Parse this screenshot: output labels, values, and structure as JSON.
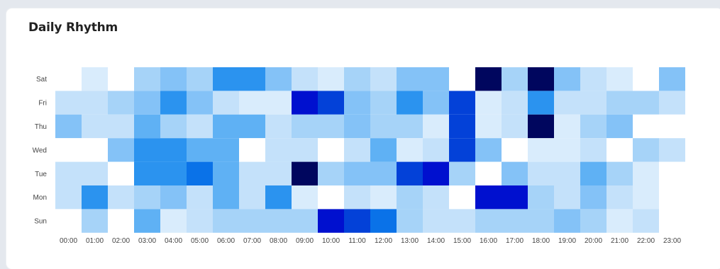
{
  "card": {
    "title": "Daily Rhythm"
  },
  "chart_data": {
    "type": "heatmap",
    "title": "Daily Rhythm",
    "x_labels": [
      "00:00",
      "01:00",
      "02:00",
      "03:00",
      "04:00",
      "05:00",
      "06:00",
      "07:00",
      "08:00",
      "09:00",
      "10:00",
      "11:00",
      "12:00",
      "13:00",
      "14:00",
      "15:00",
      "16:00",
      "17:00",
      "18:00",
      "19:00",
      "20:00",
      "21:00",
      "22:00",
      "23:00"
    ],
    "y_labels": [
      "Sat",
      "Fri",
      "Thu",
      "Wed",
      "Tue",
      "Mon",
      "Sun"
    ],
    "values": [
      [
        0,
        1,
        0,
        3,
        4,
        3,
        6,
        6,
        4,
        2,
        1,
        3,
        2,
        4,
        4,
        0,
        10,
        3,
        10,
        4,
        2,
        1,
        0,
        4
      ],
      [
        2,
        2,
        3,
        4,
        6,
        4,
        2,
        1,
        1,
        9,
        8,
        4,
        3,
        6,
        4,
        8,
        1,
        2,
        6,
        2,
        2,
        3,
        3,
        2
      ],
      [
        4,
        2,
        2,
        5,
        3,
        2,
        5,
        5,
        2,
        3,
        3,
        4,
        3,
        3,
        1,
        8,
        1,
        2,
        10,
        1,
        3,
        4,
        0,
        0
      ],
      [
        0,
        0,
        4,
        6,
        6,
        5,
        5,
        0,
        2,
        2,
        0,
        2,
        5,
        1,
        2,
        8,
        4,
        0,
        1,
        1,
        2,
        0,
        3,
        2
      ],
      [
        2,
        2,
        0,
        6,
        6,
        7,
        5,
        2,
        2,
        10,
        3,
        4,
        4,
        8,
        9,
        3,
        0,
        4,
        2,
        2,
        5,
        3,
        1,
        0
      ],
      [
        2,
        6,
        2,
        3,
        4,
        2,
        5,
        2,
        6,
        1,
        0,
        2,
        1,
        3,
        2,
        0,
        9,
        9,
        3,
        2,
        4,
        2,
        1,
        0
      ],
      [
        0,
        3,
        0,
        5,
        1,
        2,
        3,
        3,
        3,
        3,
        9,
        8,
        7,
        3,
        2,
        2,
        3,
        3,
        3,
        4,
        3,
        1,
        2,
        0
      ]
    ],
    "color_scale": [
      "#ffffff",
      "#d9ecfc",
      "#c4e1fa",
      "#a6d3f8",
      "#84c2f7",
      "#5fb1f4",
      "#2b93ef",
      "#0a72e8",
      "#0341d8",
      "#0010cf",
      "#00065e"
    ]
  }
}
